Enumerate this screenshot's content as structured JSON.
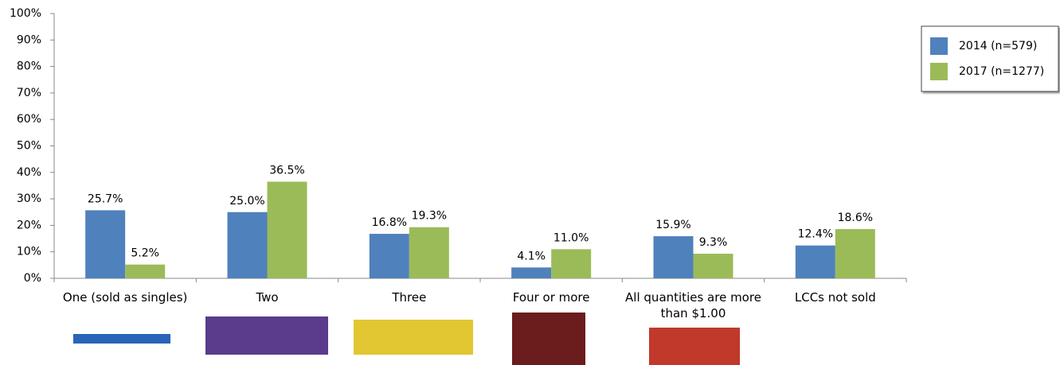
{
  "chart_data": {
    "type": "bar",
    "categories": [
      "One (sold as singles)",
      "Two",
      "Three",
      "Four or more",
      "All quantities are more than $1.00",
      "LCCs not sold"
    ],
    "series": [
      {
        "name": "2014 (n=579)",
        "color": "#4f81bd",
        "values": [
          25.7,
          25.0,
          16.8,
          4.1,
          15.9,
          12.4
        ],
        "value_labels": [
          "25.7%",
          "25.0%",
          "16.8%",
          "4.1%",
          "15.9%",
          "12.4%"
        ]
      },
      {
        "name": "2017 (n=1277)",
        "color": "#9bbb59",
        "values": [
          5.2,
          36.5,
          19.3,
          11.0,
          9.3,
          18.6
        ],
        "value_labels": [
          "5.2%",
          "36.5%",
          "19.3%",
          "11.0%",
          "9.3%",
          "18.6%"
        ]
      }
    ],
    "ylim": [
      0,
      100
    ],
    "yticks": [
      {
        "value": 0,
        "label": "0%"
      },
      {
        "value": 10,
        "label": "10%"
      },
      {
        "value": 20,
        "label": "20%"
      },
      {
        "value": 30,
        "label": "30%"
      },
      {
        "value": 40,
        "label": "40%"
      },
      {
        "value": 50,
        "label": "50%"
      },
      {
        "value": 60,
        "label": "60%"
      },
      {
        "value": 70,
        "label": "70%"
      },
      {
        "value": 80,
        "label": "80%"
      },
      {
        "value": 90,
        "label": "90%"
      },
      {
        "value": 100,
        "label": "100%"
      }
    ],
    "legend": "top-right",
    "grid": false
  }
}
